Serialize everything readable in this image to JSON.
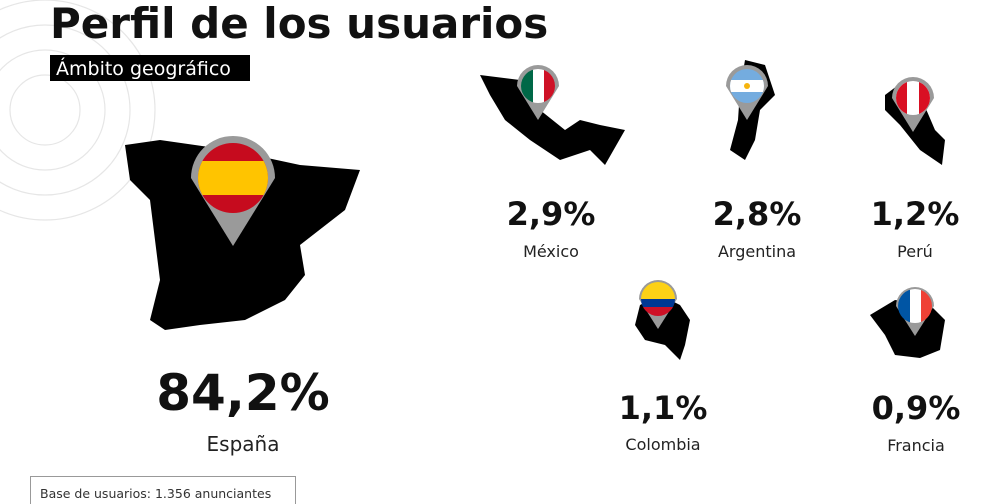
{
  "header": {
    "title": "Perfil de los usuarios",
    "subtitle": "Ámbito geográfico"
  },
  "countries": [
    {
      "name": "España",
      "percent": "84,2%"
    },
    {
      "name": "México",
      "percent": "2,9%"
    },
    {
      "name": "Argentina",
      "percent": "2,8%"
    },
    {
      "name": "Perú",
      "percent": "1,2%"
    },
    {
      "name": "Colombia",
      "percent": "1,1%"
    },
    {
      "name": "Francia",
      "percent": "0,9%"
    }
  ],
  "footnote": "Base de usuarios: 1.356 anunciantes"
}
